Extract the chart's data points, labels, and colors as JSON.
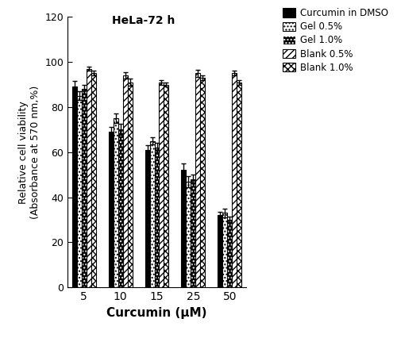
{
  "concentrations": [
    5,
    10,
    15,
    25,
    50
  ],
  "series": {
    "Curcumin in DMSO": {
      "values": [
        89,
        69,
        61,
        52,
        32
      ],
      "errors": [
        2.5,
        2.0,
        2.0,
        3.0,
        1.5
      ],
      "color": "#000000",
      "hatch": "",
      "edgecolor": "#000000",
      "lw": 0.8
    },
    "Gel 0.5%": {
      "values": [
        85,
        75,
        65,
        47,
        33
      ],
      "errors": [
        2.0,
        2.0,
        1.5,
        2.5,
        2.0
      ],
      "color": "#ffffff",
      "hatch": "....",
      "edgecolor": "#000000",
      "lw": 0.8
    },
    "Gel 1.0%": {
      "values": [
        88,
        70,
        62,
        48,
        30
      ],
      "errors": [
        2.0,
        2.5,
        2.0,
        2.0,
        1.5
      ],
      "color": "#000000",
      "hatch": "....",
      "edgecolor": "#ffffff",
      "lw": 0.8
    },
    "Blank 0.5%": {
      "values": [
        97,
        94,
        91,
        95,
        95
      ],
      "errors": [
        1.0,
        1.5,
        1.0,
        1.5,
        1.0
      ],
      "color": "#ffffff",
      "hatch": "////",
      "edgecolor": "#000000",
      "lw": 0.8
    },
    "Blank 1.0%": {
      "values": [
        95,
        91,
        90,
        93,
        91
      ],
      "errors": [
        1.0,
        1.5,
        1.0,
        1.0,
        1.0
      ],
      "color": "#ffffff",
      "hatch": "xxxx",
      "edgecolor": "#000000",
      "lw": 0.8
    }
  },
  "xlabel": "Curcumin (μM)",
  "ylabel": "Relative cell viability\n(Absorbance at 570 nm,%)",
  "ylim": [
    0,
    120
  ],
  "yticks": [
    0,
    20,
    40,
    60,
    80,
    100,
    120
  ],
  "title_text": "HeLa-72 h",
  "bar_width": 0.13,
  "background_color": "#ffffff"
}
